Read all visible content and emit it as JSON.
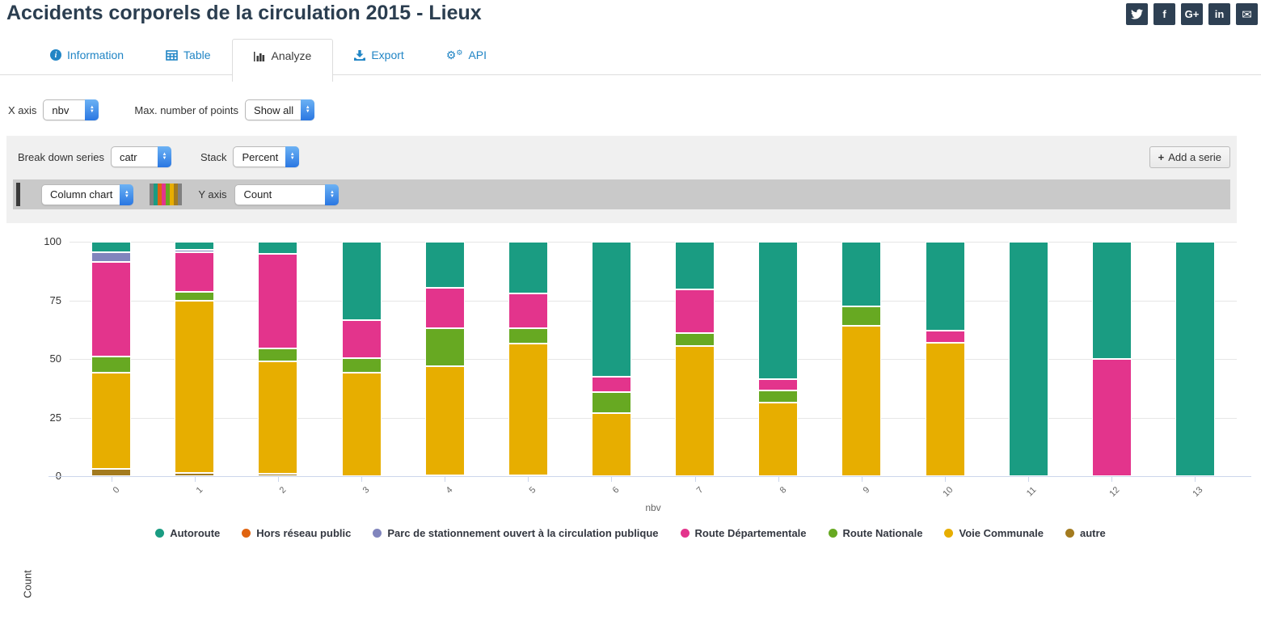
{
  "header": {
    "title": "Accidents corporels de la circulation 2015 - Lieux",
    "social": [
      {
        "name": "twitter"
      },
      {
        "name": "facebook",
        "glyph": "f"
      },
      {
        "name": "googleplus",
        "glyph": "G+"
      },
      {
        "name": "linkedin",
        "glyph": "in"
      },
      {
        "name": "email",
        "glyph": "✉"
      }
    ]
  },
  "tabs": [
    {
      "label": "Information",
      "icon": "info-circle-icon",
      "active": false
    },
    {
      "label": "Table",
      "icon": "table-icon",
      "active": false
    },
    {
      "label": "Analyze",
      "icon": "bar-chart-icon",
      "active": true
    },
    {
      "label": "Export",
      "icon": "download-icon",
      "active": false
    },
    {
      "label": "API",
      "icon": "cogs-icon",
      "active": false
    }
  ],
  "controls": {
    "x_axis_label": "X axis",
    "x_axis_value": "nbv",
    "max_points_label": "Max. number of points",
    "max_points_value": "Show all",
    "breakdown_label": "Break down series",
    "breakdown_value": "catr",
    "stack_label": "Stack",
    "stack_value": "Percent",
    "add_serie_plus": "+",
    "add_serie_label": "Add a serie",
    "chart_type_value": "Column chart",
    "y_axis_label": "Y axis",
    "y_axis_value": "Count",
    "palette_colors": [
      "#808080",
      "#1a9c82",
      "#e06410",
      "#e3348c",
      "#67a922",
      "#e7ae00",
      "#a37b1f",
      "#808080"
    ]
  },
  "chart_data": {
    "type": "bar",
    "stacking": "percent",
    "title": "",
    "xlabel": "nbv",
    "ylabel": "Count",
    "ylim": [
      0,
      100
    ],
    "yticks": [
      0,
      25,
      50,
      75,
      100
    ],
    "grid": true,
    "legend_position": "bottom",
    "stack_order": "reverse of series list, bottom to top",
    "categories": [
      "0",
      "1",
      "2",
      "3",
      "4",
      "5",
      "6",
      "7",
      "8",
      "9",
      "10",
      "11",
      "12",
      "13"
    ],
    "series": [
      {
        "name": "Autoroute",
        "color": "#1a9c82",
        "values": [
          4.5,
          3.5,
          5,
          33.5,
          19.5,
          22,
          57.5,
          20.5,
          58.5,
          27.5,
          38,
          100,
          50,
          100
        ]
      },
      {
        "name": "Hors réseau public",
        "color": "#e06410",
        "values": [
          0,
          0,
          0,
          0,
          0,
          0,
          0,
          0,
          0,
          0,
          0,
          0,
          0,
          0
        ]
      },
      {
        "name": "Parc de stationnement ouvert à la circulation publique",
        "color": "#8185bd",
        "values": [
          4,
          1,
          0,
          0,
          0,
          0,
          0,
          0,
          0,
          0,
          0,
          0,
          0,
          0
        ]
      },
      {
        "name": "Route Départementale",
        "color": "#e3348c",
        "values": [
          40.5,
          17,
          40.5,
          16,
          17.5,
          15,
          6.5,
          18.5,
          5,
          0,
          5,
          0,
          50,
          0
        ]
      },
      {
        "name": "Route Nationale",
        "color": "#67a922",
        "values": [
          7,
          3.5,
          5.5,
          6.5,
          16,
          6.5,
          9,
          5.5,
          5,
          8.5,
          0,
          0,
          0,
          0
        ]
      },
      {
        "name": "Voie Communale",
        "color": "#e7ae00",
        "values": [
          41,
          73.5,
          48,
          44,
          46.5,
          56,
          27,
          55.5,
          31.5,
          64,
          57,
          0,
          0,
          0
        ]
      },
      {
        "name": "autre",
        "color": "#a37b1f",
        "values": [
          3,
          1.5,
          1,
          0,
          0.5,
          0.5,
          0,
          0,
          0,
          0,
          0,
          0,
          0,
          0
        ]
      }
    ]
  }
}
